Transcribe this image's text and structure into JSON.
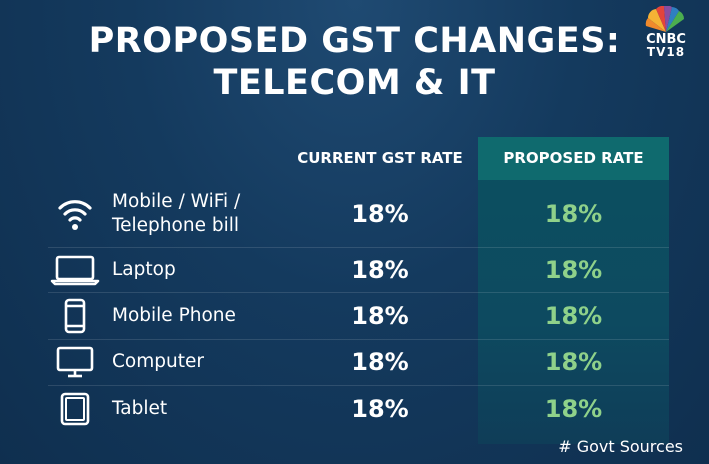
{
  "title": {
    "line1": "PROPOSED GST CHANGES:",
    "line2": "TELECOM & IT"
  },
  "logo": {
    "line1": "CNBC",
    "line2": "TV18",
    "icon": "peacock-logo-icon"
  },
  "table": {
    "headers": {
      "current": "CURRENT GST RATE",
      "proposed": "PROPOSED RATE"
    },
    "rows": [
      {
        "icon": "wifi-icon",
        "label_lines": [
          "Mobile / WiFi /",
          "Telephone bill"
        ],
        "current": "18%",
        "proposed": "18%"
      },
      {
        "icon": "laptop-icon",
        "label": "Laptop",
        "current": "18%",
        "proposed": "18%"
      },
      {
        "icon": "mobile-phone-icon",
        "label": "Mobile Phone",
        "current": "18%",
        "proposed": "18%"
      },
      {
        "icon": "computer-monitor-icon",
        "label": "Computer",
        "current": "18%",
        "proposed": "18%"
      },
      {
        "icon": "tablet-icon",
        "label": "Tablet",
        "current": "18%",
        "proposed": "18%"
      }
    ]
  },
  "source": "# Govt Sources",
  "colors": {
    "background": "#143a5e",
    "proposed_header": "#0f6a6e",
    "proposed_value": "#8fd18a"
  }
}
